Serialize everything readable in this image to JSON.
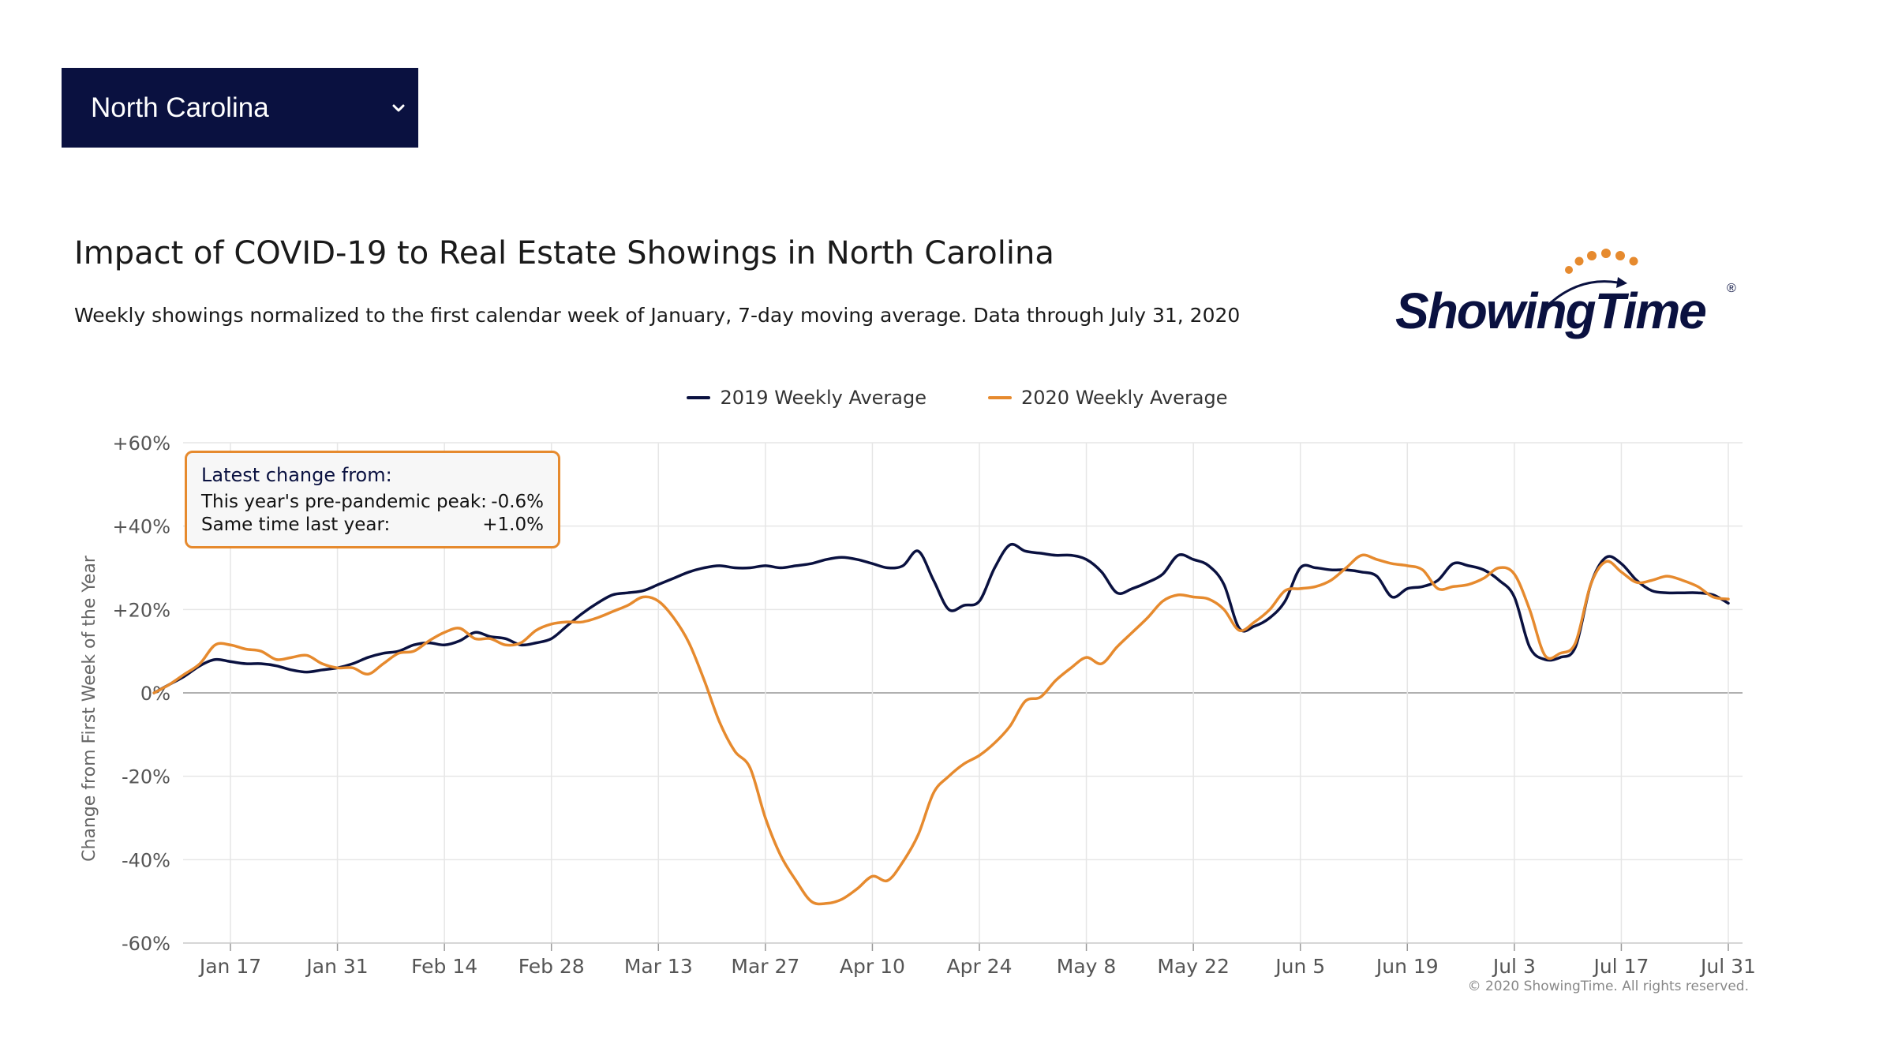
{
  "selector": {
    "selected_state": "North Carolina",
    "icon": "chevron-down-icon"
  },
  "header": {
    "title": "Impact of COVID-19 to Real Estate Showings in North Carolina",
    "subtitle": "Weekly showings normalized to the first calendar week of January, 7-day moving average. Data through July 31, 2020"
  },
  "logo": {
    "text": "ShowingTime",
    "registered": "®"
  },
  "infobox": {
    "heading": "Latest change from:",
    "rows": [
      {
        "label": "This year's pre-pandemic peak:",
        "value": "-0.6%"
      },
      {
        "label": "Same time last year:",
        "value": "+1.0%"
      }
    ]
  },
  "copyright": "© 2020 ShowingTime. All rights reserved.",
  "colors": {
    "series_2019": "#0a1140",
    "series_2020": "#e68a2e",
    "grid": "#e6e6e6",
    "zero_line": "#b0b0b0",
    "axis_text": "#555555",
    "select_bg": "#0a1140"
  },
  "chart_data": {
    "type": "line",
    "title": "Impact of COVID-19 to Real Estate Showings in North Carolina",
    "subtitle": "Weekly showings normalized to the first calendar week of January, 7-day moving average. Data through July 31, 2020",
    "xlabel": "",
    "ylabel": "Change from First Week of the Year",
    "ylim": [
      -60,
      60
    ],
    "xlim": [
      "2020-01-07",
      "2020-07-31"
    ],
    "x_tick_dates": [
      "2020-01-17",
      "2020-01-31",
      "2020-02-14",
      "2020-02-28",
      "2020-03-13",
      "2020-03-27",
      "2020-04-10",
      "2020-04-24",
      "2020-05-08",
      "2020-05-22",
      "2020-06-05",
      "2020-06-19",
      "2020-07-03",
      "2020-07-17",
      "2020-07-31"
    ],
    "x_tick_labels": [
      "Jan 17",
      "Jan 31",
      "Feb 14",
      "Feb 28",
      "Mar 13",
      "Mar 27",
      "Apr 10",
      "Apr 24",
      "May 8",
      "May 22",
      "Jun 5",
      "Jun 19",
      "Jul 3",
      "Jul 17",
      "Jul 31"
    ],
    "y_ticks": [
      -60,
      -40,
      -20,
      0,
      20,
      40,
      60
    ],
    "y_tick_labels": [
      "-60%",
      "-40%",
      "-20%",
      "0%",
      "+20%",
      "+40%",
      "+60%"
    ],
    "grid": true,
    "legend_position": "top-center",
    "series": [
      {
        "name": "2019 Weekly Average",
        "color": "#0a1140",
        "points": [
          [
            "2020-01-07",
            0
          ],
          [
            "2020-01-09",
            2
          ],
          [
            "2020-01-11",
            4
          ],
          [
            "2020-01-13",
            6.5
          ],
          [
            "2020-01-15",
            8
          ],
          [
            "2020-01-17",
            7.5
          ],
          [
            "2020-01-19",
            7
          ],
          [
            "2020-01-21",
            7
          ],
          [
            "2020-01-23",
            6.5
          ],
          [
            "2020-01-25",
            5.5
          ],
          [
            "2020-01-27",
            5
          ],
          [
            "2020-01-29",
            5.5
          ],
          [
            "2020-01-31",
            6
          ],
          [
            "2020-02-02",
            7
          ],
          [
            "2020-02-04",
            8.5
          ],
          [
            "2020-02-06",
            9.5
          ],
          [
            "2020-02-08",
            10
          ],
          [
            "2020-02-10",
            11.5
          ],
          [
            "2020-02-12",
            12
          ],
          [
            "2020-02-14",
            11.5
          ],
          [
            "2020-02-16",
            12.5
          ],
          [
            "2020-02-18",
            14.5
          ],
          [
            "2020-02-20",
            13.5
          ],
          [
            "2020-02-22",
            13
          ],
          [
            "2020-02-24",
            11.5
          ],
          [
            "2020-02-26",
            12
          ],
          [
            "2020-02-28",
            13
          ],
          [
            "2020-03-01",
            16
          ],
          [
            "2020-03-03",
            19
          ],
          [
            "2020-03-05",
            21.5
          ],
          [
            "2020-03-07",
            23.5
          ],
          [
            "2020-03-09",
            24
          ],
          [
            "2020-03-11",
            24.5
          ],
          [
            "2020-03-13",
            26
          ],
          [
            "2020-03-15",
            27.5
          ],
          [
            "2020-03-17",
            29
          ],
          [
            "2020-03-19",
            30
          ],
          [
            "2020-03-21",
            30.5
          ],
          [
            "2020-03-23",
            30
          ],
          [
            "2020-03-25",
            30
          ],
          [
            "2020-03-27",
            30.5
          ],
          [
            "2020-03-29",
            30
          ],
          [
            "2020-03-31",
            30.5
          ],
          [
            "2020-04-02",
            31
          ],
          [
            "2020-04-04",
            32
          ],
          [
            "2020-04-06",
            32.5
          ],
          [
            "2020-04-08",
            32
          ],
          [
            "2020-04-10",
            31
          ],
          [
            "2020-04-12",
            30
          ],
          [
            "2020-04-14",
            30.5
          ],
          [
            "2020-04-16",
            34
          ],
          [
            "2020-04-18",
            27
          ],
          [
            "2020-04-20",
            20
          ],
          [
            "2020-04-22",
            21
          ],
          [
            "2020-04-24",
            22
          ],
          [
            "2020-04-26",
            30
          ],
          [
            "2020-04-28",
            35.5
          ],
          [
            "2020-04-30",
            34
          ],
          [
            "2020-05-02",
            33.5
          ],
          [
            "2020-05-04",
            33
          ],
          [
            "2020-05-06",
            33
          ],
          [
            "2020-05-08",
            32
          ],
          [
            "2020-05-10",
            29
          ],
          [
            "2020-05-12",
            24
          ],
          [
            "2020-05-14",
            25
          ],
          [
            "2020-05-16",
            26.5
          ],
          [
            "2020-05-18",
            28.5
          ],
          [
            "2020-05-20",
            33
          ],
          [
            "2020-05-22",
            32
          ],
          [
            "2020-05-24",
            30.5
          ],
          [
            "2020-05-26",
            26
          ],
          [
            "2020-05-28",
            15.5
          ],
          [
            "2020-05-30",
            16
          ],
          [
            "2020-06-01",
            18
          ],
          [
            "2020-06-03",
            22
          ],
          [
            "2020-06-05",
            30
          ],
          [
            "2020-06-07",
            30
          ],
          [
            "2020-06-09",
            29.5
          ],
          [
            "2020-06-11",
            29.5
          ],
          [
            "2020-06-13",
            29
          ],
          [
            "2020-06-15",
            28
          ],
          [
            "2020-06-17",
            23
          ],
          [
            "2020-06-19",
            25
          ],
          [
            "2020-06-21",
            25.5
          ],
          [
            "2020-06-23",
            27
          ],
          [
            "2020-06-25",
            31
          ],
          [
            "2020-06-27",
            30.5
          ],
          [
            "2020-06-29",
            29.5
          ],
          [
            "2020-07-01",
            27
          ],
          [
            "2020-07-03",
            23
          ],
          [
            "2020-07-05",
            11
          ],
          [
            "2020-07-07",
            8
          ],
          [
            "2020-07-09",
            8.5
          ],
          [
            "2020-07-11",
            11
          ],
          [
            "2020-07-13",
            26
          ],
          [
            "2020-07-15",
            32.5
          ],
          [
            "2020-07-17",
            31
          ],
          [
            "2020-07-19",
            27
          ],
          [
            "2020-07-21",
            24.5
          ],
          [
            "2020-07-23",
            24
          ],
          [
            "2020-07-25",
            24
          ],
          [
            "2020-07-27",
            24
          ],
          [
            "2020-07-29",
            23.5
          ],
          [
            "2020-07-31",
            21.5
          ]
        ]
      },
      {
        "name": "2020 Weekly Average",
        "color": "#e68a2e",
        "points": [
          [
            "2020-01-07",
            0
          ],
          [
            "2020-01-09",
            2
          ],
          [
            "2020-01-11",
            4.5
          ],
          [
            "2020-01-13",
            7
          ],
          [
            "2020-01-15",
            11.5
          ],
          [
            "2020-01-17",
            11.5
          ],
          [
            "2020-01-19",
            10.5
          ],
          [
            "2020-01-21",
            10
          ],
          [
            "2020-01-23",
            8
          ],
          [
            "2020-01-25",
            8.5
          ],
          [
            "2020-01-27",
            9
          ],
          [
            "2020-01-29",
            7
          ],
          [
            "2020-01-31",
            6
          ],
          [
            "2020-02-02",
            6
          ],
          [
            "2020-02-04",
            4.5
          ],
          [
            "2020-02-06",
            7
          ],
          [
            "2020-02-08",
            9.5
          ],
          [
            "2020-02-10",
            10
          ],
          [
            "2020-02-12",
            12.5
          ],
          [
            "2020-02-14",
            14.5
          ],
          [
            "2020-02-16",
            15.5
          ],
          [
            "2020-02-18",
            13
          ],
          [
            "2020-02-20",
            13
          ],
          [
            "2020-02-22",
            11.5
          ],
          [
            "2020-02-24",
            12
          ],
          [
            "2020-02-26",
            15
          ],
          [
            "2020-02-28",
            16.5
          ],
          [
            "2020-03-01",
            17
          ],
          [
            "2020-03-03",
            17
          ],
          [
            "2020-03-05",
            18
          ],
          [
            "2020-03-07",
            19.5
          ],
          [
            "2020-03-09",
            21
          ],
          [
            "2020-03-11",
            23
          ],
          [
            "2020-03-13",
            22
          ],
          [
            "2020-03-15",
            18
          ],
          [
            "2020-03-17",
            12
          ],
          [
            "2020-03-19",
            3
          ],
          [
            "2020-03-21",
            -7
          ],
          [
            "2020-03-23",
            -14
          ],
          [
            "2020-03-25",
            -18
          ],
          [
            "2020-03-27",
            -30
          ],
          [
            "2020-03-29",
            -39
          ],
          [
            "2020-03-31",
            -45
          ],
          [
            "2020-04-02",
            -50
          ],
          [
            "2020-04-04",
            -50.5
          ],
          [
            "2020-04-06",
            -49.5
          ],
          [
            "2020-04-08",
            -47
          ],
          [
            "2020-04-10",
            -44
          ],
          [
            "2020-04-12",
            -45
          ],
          [
            "2020-04-14",
            -40.5
          ],
          [
            "2020-04-16",
            -34
          ],
          [
            "2020-04-18",
            -24
          ],
          [
            "2020-04-20",
            -20
          ],
          [
            "2020-04-22",
            -17
          ],
          [
            "2020-04-24",
            -15
          ],
          [
            "2020-04-26",
            -12
          ],
          [
            "2020-04-28",
            -8
          ],
          [
            "2020-04-30",
            -2
          ],
          [
            "2020-05-02",
            -1
          ],
          [
            "2020-05-04",
            3
          ],
          [
            "2020-05-06",
            6
          ],
          [
            "2020-05-08",
            8.5
          ],
          [
            "2020-05-10",
            7
          ],
          [
            "2020-05-12",
            11
          ],
          [
            "2020-05-14",
            14.5
          ],
          [
            "2020-05-16",
            18
          ],
          [
            "2020-05-18",
            22
          ],
          [
            "2020-05-20",
            23.5
          ],
          [
            "2020-05-22",
            23
          ],
          [
            "2020-05-24",
            22.5
          ],
          [
            "2020-05-26",
            20
          ],
          [
            "2020-05-28",
            15
          ],
          [
            "2020-05-30",
            17
          ],
          [
            "2020-06-01",
            20
          ],
          [
            "2020-06-03",
            24.5
          ],
          [
            "2020-06-05",
            25
          ],
          [
            "2020-06-07",
            25.5
          ],
          [
            "2020-06-09",
            27
          ],
          [
            "2020-06-11",
            30
          ],
          [
            "2020-06-13",
            33
          ],
          [
            "2020-06-15",
            32
          ],
          [
            "2020-06-17",
            31
          ],
          [
            "2020-06-19",
            30.5
          ],
          [
            "2020-06-21",
            29.5
          ],
          [
            "2020-06-23",
            25
          ],
          [
            "2020-06-25",
            25.5
          ],
          [
            "2020-06-27",
            26
          ],
          [
            "2020-06-29",
            27.5
          ],
          [
            "2020-07-01",
            30
          ],
          [
            "2020-07-03",
            28.5
          ],
          [
            "2020-07-05",
            20
          ],
          [
            "2020-07-07",
            9
          ],
          [
            "2020-07-09",
            9.5
          ],
          [
            "2020-07-11",
            12
          ],
          [
            "2020-07-13",
            26
          ],
          [
            "2020-07-15",
            31.5
          ],
          [
            "2020-07-17",
            29
          ],
          [
            "2020-07-19",
            26.5
          ],
          [
            "2020-07-21",
            27
          ],
          [
            "2020-07-23",
            28
          ],
          [
            "2020-07-25",
            27
          ],
          [
            "2020-07-27",
            25.5
          ],
          [
            "2020-07-29",
            23
          ],
          [
            "2020-07-31",
            22.5
          ]
        ]
      }
    ]
  }
}
